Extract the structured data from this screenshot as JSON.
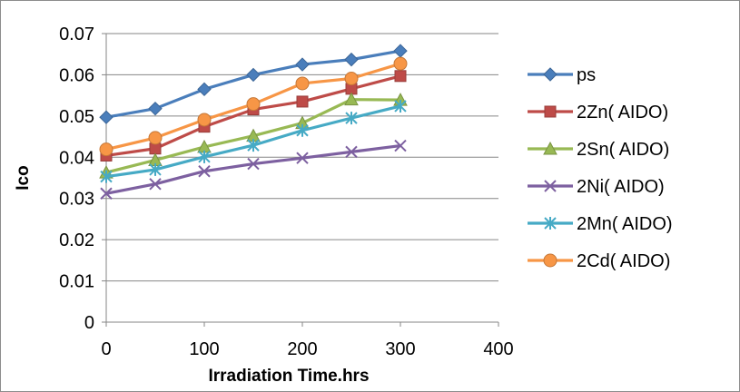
{
  "chart_data": {
    "type": "line",
    "title": "",
    "xlabel": "Irradiation Time.hrs",
    "ylabel": "Ico",
    "x": [
      0,
      50,
      100,
      150,
      200,
      250,
      300
    ],
    "xlim": [
      0,
      400
    ],
    "ylim": [
      0,
      0.07
    ],
    "xticks": [
      0,
      100,
      200,
      300,
      400
    ],
    "yticks": [
      0,
      0.01,
      0.02,
      0.03,
      0.04,
      0.05,
      0.06,
      0.07
    ],
    "xtick_labels": [
      "0",
      "100",
      "200",
      "300",
      "400"
    ],
    "ytick_labels": [
      "0",
      "0.01",
      "0.02",
      "0.03",
      "0.04",
      "0.05",
      "0.06",
      "0.07"
    ],
    "grid": "horizontal",
    "legend_position": "right",
    "series": [
      {
        "name": "ps",
        "values": [
          0.0497,
          0.0518,
          0.0565,
          0.06,
          0.0625,
          0.0637,
          0.0658
        ],
        "color": "#4a7ebb",
        "marker": "diamond"
      },
      {
        "name": "2Zn( AIDO)",
        "values": [
          0.0404,
          0.0421,
          0.0474,
          0.0516,
          0.0535,
          0.0566,
          0.0597
        ],
        "color": "#be4b48",
        "marker": "square"
      },
      {
        "name": "2Sn( AIDO)",
        "values": [
          0.0363,
          0.0393,
          0.0425,
          0.0452,
          0.0483,
          0.054,
          0.0539
        ],
        "color": "#98b954",
        "marker": "triangle"
      },
      {
        "name": "2Ni( AIDO)",
        "values": [
          0.0312,
          0.0335,
          0.0366,
          0.0384,
          0.0398,
          0.0413,
          0.0428
        ],
        "color": "#7d60a0",
        "marker": "x"
      },
      {
        "name": "2Mn( AIDO)",
        "values": [
          0.0353,
          0.037,
          0.0401,
          0.0429,
          0.0465,
          0.0495,
          0.0524
        ],
        "color": "#46aac5",
        "marker": "star"
      },
      {
        "name": "2Cd( AIDO)",
        "values": [
          0.0419,
          0.0447,
          0.0491,
          0.0529,
          0.0579,
          0.0591,
          0.0627
        ],
        "color": "#f79646",
        "marker": "circle"
      }
    ]
  }
}
